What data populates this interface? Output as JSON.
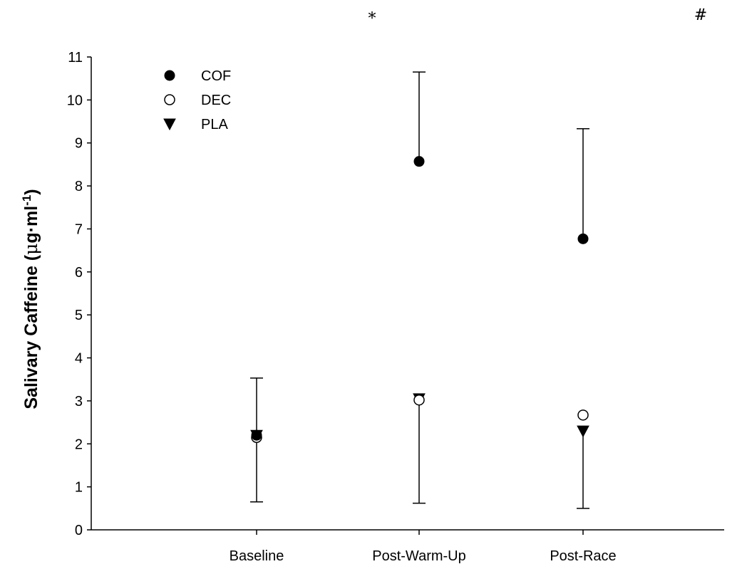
{
  "chart_data": {
    "type": "scatter",
    "title": "",
    "xlabel": "",
    "ylabel": {
      "main": "Salivary Caffeine (",
      "mu": "μ",
      "unit": "g·ml",
      "sup": "-1",
      "close": ")"
    },
    "categories": [
      "Baseline",
      "Post-Warm-Up",
      "Post-Race"
    ],
    "ylim": [
      0,
      11
    ],
    "yticks": [
      "0",
      "1",
      "2",
      "3",
      "4",
      "5",
      "6",
      "7",
      "8",
      "9",
      "10",
      "11"
    ],
    "legend_position": "top-left",
    "series": [
      {
        "name": "COF",
        "marker": "filled-circle",
        "values": [
          2.2,
          8.57,
          6.77
        ],
        "error_upper": [
          1.33,
          2.08,
          2.56
        ],
        "error_lower": [
          1.55,
          0,
          0
        ]
      },
      {
        "name": "DEC",
        "marker": "open-circle",
        "values": [
          2.15,
          3.02,
          2.67
        ],
        "error_upper": [
          0,
          0,
          0
        ],
        "error_lower": [
          0,
          2.4,
          0
        ]
      },
      {
        "name": "PLA",
        "marker": "filled-triangle-down",
        "values": [
          2.2,
          3.05,
          2.3
        ],
        "error_upper": [
          0,
          0,
          0
        ],
        "error_lower": [
          0,
          0,
          1.8
        ]
      }
    ],
    "annotations": [
      {
        "text": "*",
        "category": "Post-Warm-Up"
      },
      {
        "text": "#",
        "category": "Post-Race"
      }
    ]
  }
}
